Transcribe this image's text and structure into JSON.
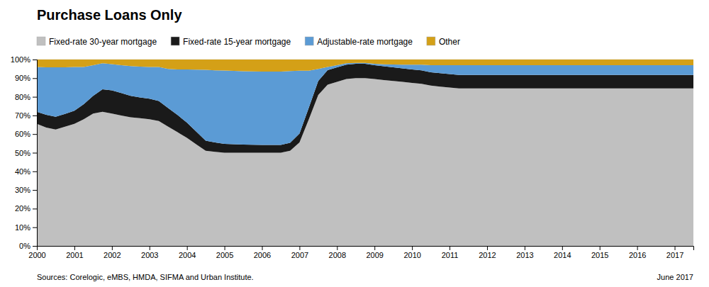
{
  "chart_data": {
    "type": "area",
    "stacked": true,
    "title": "Purchase Loans Only",
    "annotations": [
      "Sources: Corelogic, eMBS, HMDA, SIFMA and Urban Institute.",
      "June 2017"
    ],
    "legend": "top",
    "grid": true,
    "xlim": [
      2000,
      2017.5
    ],
    "xticks": [
      2000,
      2001,
      2002,
      2003,
      2004,
      2005,
      2006,
      2007,
      2008,
      2009,
      2010,
      2011,
      2012,
      2013,
      2014,
      2015,
      2016,
      2017
    ],
    "ylim": [
      0,
      1
    ],
    "yticks": [
      {
        "value": 0,
        "label": "0%"
      },
      {
        "value": 0.1,
        "label": "10%"
      },
      {
        "value": 0.2,
        "label": "20%"
      },
      {
        "value": 0.3,
        "label": "30%"
      },
      {
        "value": 0.4,
        "label": "40%"
      },
      {
        "value": 0.5,
        "label": "50%"
      },
      {
        "value": 0.6,
        "label": "60%"
      },
      {
        "value": 0.7,
        "label": "70%"
      },
      {
        "value": 0.8,
        "label": "80%"
      },
      {
        "value": 0.9,
        "label": "90%"
      },
      {
        "value": 1,
        "label": "100%"
      }
    ],
    "x": [
      2000.0,
      2000.25,
      2000.5,
      2000.75,
      2001.0,
      2001.25,
      2001.5,
      2001.75,
      2002.0,
      2002.25,
      2002.5,
      2002.75,
      2003.0,
      2003.25,
      2003.5,
      2003.75,
      2004.0,
      2004.25,
      2004.5,
      2004.75,
      2005.0,
      2005.25,
      2005.5,
      2005.75,
      2006.0,
      2006.25,
      2006.5,
      2006.75,
      2007.0,
      2007.25,
      2007.5,
      2007.75,
      2008.0,
      2008.25,
      2008.5,
      2008.75,
      2009.0,
      2009.25,
      2009.5,
      2009.75,
      2010.0,
      2010.25,
      2010.5,
      2010.75,
      2011.0,
      2011.25,
      2011.5,
      2011.75,
      2012.0,
      2012.25,
      2012.5,
      2012.75,
      2013.0,
      2013.25,
      2013.5,
      2013.75,
      2014.0,
      2014.25,
      2014.5,
      2014.75,
      2015.0,
      2015.25,
      2015.5,
      2015.75,
      2016.0,
      2016.25,
      2016.5,
      2016.75,
      2017.0,
      2017.25,
      2017.5
    ],
    "series": [
      {
        "name": "Fixed-rate 30-year mortgage",
        "color": "#c0c0c0",
        "values": [
          0.655,
          0.635,
          0.625,
          0.64,
          0.655,
          0.68,
          0.71,
          0.72,
          0.71,
          0.7,
          0.69,
          0.685,
          0.68,
          0.67,
          0.64,
          0.61,
          0.58,
          0.545,
          0.51,
          0.505,
          0.5,
          0.5,
          0.5,
          0.5,
          0.5,
          0.5,
          0.5,
          0.51,
          0.555,
          0.68,
          0.81,
          0.865,
          0.88,
          0.895,
          0.9,
          0.9,
          0.895,
          0.89,
          0.885,
          0.88,
          0.875,
          0.87,
          0.86,
          0.855,
          0.85,
          0.845,
          0.845,
          0.845,
          0.845,
          0.845,
          0.845,
          0.845,
          0.845,
          0.845,
          0.845,
          0.845,
          0.845,
          0.845,
          0.845,
          0.845,
          0.845,
          0.845,
          0.845,
          0.845,
          0.845,
          0.845,
          0.845,
          0.845,
          0.845,
          0.845,
          0.845
        ]
      },
      {
        "name": "Fixed-rate 15-year mortgage",
        "color": "#1a1a1a",
        "values": [
          0.065,
          0.068,
          0.068,
          0.068,
          0.07,
          0.08,
          0.095,
          0.12,
          0.125,
          0.12,
          0.115,
          0.112,
          0.11,
          0.108,
          0.1,
          0.092,
          0.082,
          0.068,
          0.055,
          0.05,
          0.048,
          0.046,
          0.044,
          0.043,
          0.042,
          0.042,
          0.042,
          0.043,
          0.048,
          0.062,
          0.075,
          0.078,
          0.078,
          0.077,
          0.077,
          0.077,
          0.075,
          0.074,
          0.073,
          0.072,
          0.072,
          0.072,
          0.072,
          0.072,
          0.072,
          0.072,
          0.072,
          0.072,
          0.072,
          0.072,
          0.072,
          0.072,
          0.072,
          0.072,
          0.072,
          0.072,
          0.072,
          0.072,
          0.072,
          0.072,
          0.072,
          0.072,
          0.072,
          0.072,
          0.072,
          0.072,
          0.072,
          0.072,
          0.072,
          0.072,
          0.072
        ]
      },
      {
        "name": "Adjustable-rate mortgage",
        "color": "#5b9bd5",
        "values": [
          0.24,
          0.255,
          0.265,
          0.25,
          0.235,
          0.2,
          0.165,
          0.14,
          0.14,
          0.15,
          0.16,
          0.165,
          0.17,
          0.182,
          0.21,
          0.245,
          0.285,
          0.333,
          0.38,
          0.387,
          0.393,
          0.393,
          0.393,
          0.393,
          0.393,
          0.393,
          0.393,
          0.385,
          0.337,
          0.198,
          0.065,
          0.017,
          0.012,
          0.008,
          0.005,
          0.005,
          0.007,
          0.01,
          0.015,
          0.02,
          0.025,
          0.03,
          0.038,
          0.043,
          0.048,
          0.053,
          0.053,
          0.053,
          0.053,
          0.053,
          0.053,
          0.053,
          0.053,
          0.053,
          0.053,
          0.053,
          0.053,
          0.053,
          0.053,
          0.053,
          0.053,
          0.053,
          0.053,
          0.053,
          0.053,
          0.053,
          0.053,
          0.053,
          0.053,
          0.053,
          0.053
        ]
      },
      {
        "name": "Other",
        "color": "#d4a017",
        "values": [
          0.04,
          0.042,
          0.042,
          0.042,
          0.04,
          0.04,
          0.03,
          0.02,
          0.025,
          0.03,
          0.035,
          0.038,
          0.04,
          0.04,
          0.05,
          0.053,
          0.053,
          0.054,
          0.055,
          0.058,
          0.059,
          0.061,
          0.063,
          0.064,
          0.065,
          0.065,
          0.065,
          0.062,
          0.06,
          0.06,
          0.05,
          0.04,
          0.03,
          0.02,
          0.018,
          0.018,
          0.023,
          0.026,
          0.027,
          0.028,
          0.028,
          0.028,
          0.03,
          0.03,
          0.03,
          0.03,
          0.03,
          0.03,
          0.03,
          0.03,
          0.03,
          0.03,
          0.03,
          0.03,
          0.03,
          0.03,
          0.03,
          0.03,
          0.03,
          0.03,
          0.03,
          0.03,
          0.03,
          0.03,
          0.03,
          0.03,
          0.03,
          0.03,
          0.03,
          0.03,
          0.03
        ]
      }
    ]
  }
}
